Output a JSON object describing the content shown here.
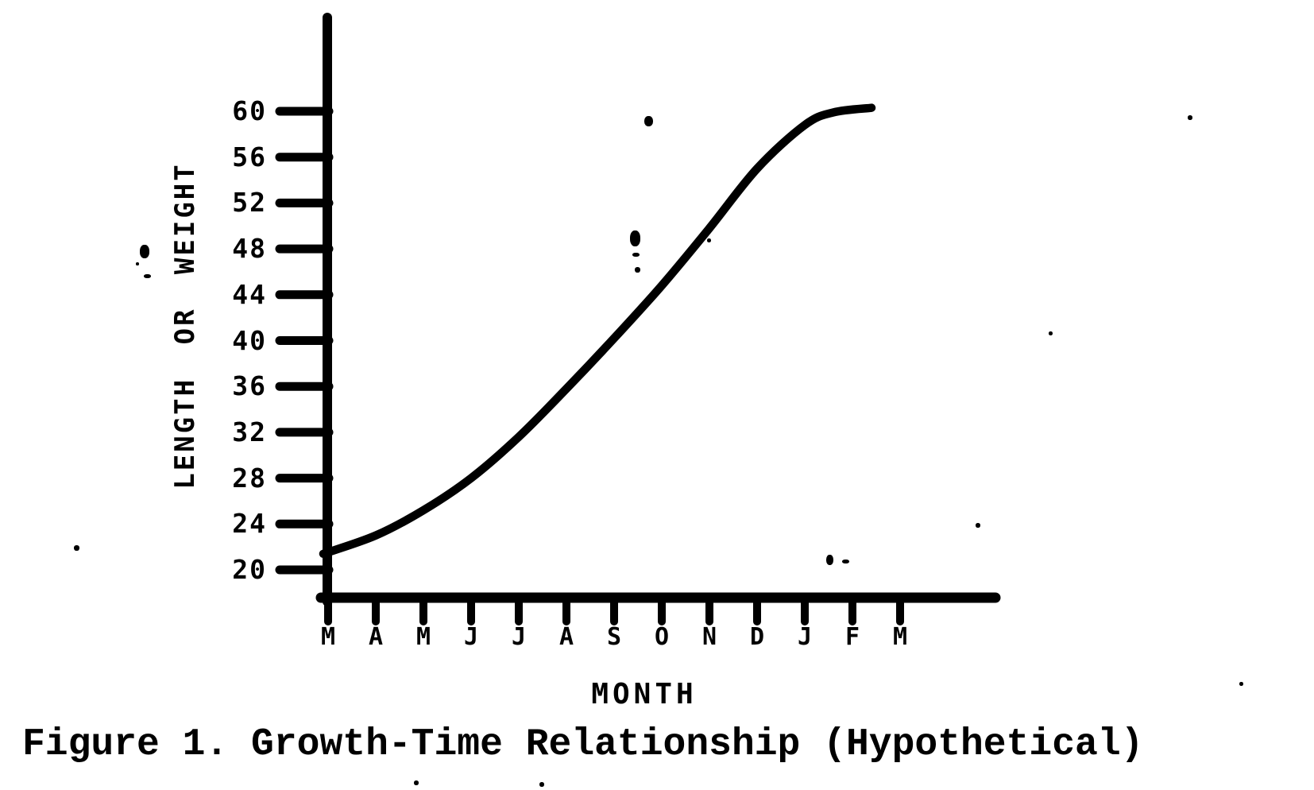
{
  "figure": {
    "caption": "Figure 1. Growth-Time Relationship (Hypothetical)"
  },
  "chart_data": {
    "type": "line",
    "title": "Figure 1. Growth-Time Relationship (Hypothetical)",
    "xlabel": "MONTH",
    "ylabel": "LENGTH OR WEIGHT",
    "x_labels": [
      "M",
      "A",
      "M",
      "J",
      "J",
      "A",
      "S",
      "O",
      "N",
      "D",
      "J",
      "F",
      "M"
    ],
    "y_ticks": [
      60,
      56,
      52,
      48,
      44,
      40,
      36,
      32,
      28,
      24,
      20
    ],
    "ylim": [
      20,
      60
    ],
    "grid": false,
    "legend": "none",
    "line_color": "#000000",
    "shape_note": "Single S-shaped (sigmoid) growth curve starting just above 21 at the first M (March), rising steeply through autumn, and flattening near 60 by J/F; curve ends just past F.",
    "series": [
      {
        "name": "Hypothetical growth curve",
        "x_unit": "month index (0 = first M tick)",
        "points": [
          [
            -0.1,
            21.4
          ],
          [
            1,
            23.0
          ],
          [
            2,
            25.2
          ],
          [
            3,
            28.0
          ],
          [
            4,
            31.6
          ],
          [
            5,
            35.8
          ],
          [
            6,
            40.2
          ],
          [
            7,
            44.8
          ],
          [
            8,
            49.8
          ],
          [
            9,
            55.0
          ],
          [
            10,
            58.8
          ],
          [
            10.6,
            59.9
          ],
          [
            11.4,
            60.3
          ]
        ]
      }
    ]
  }
}
